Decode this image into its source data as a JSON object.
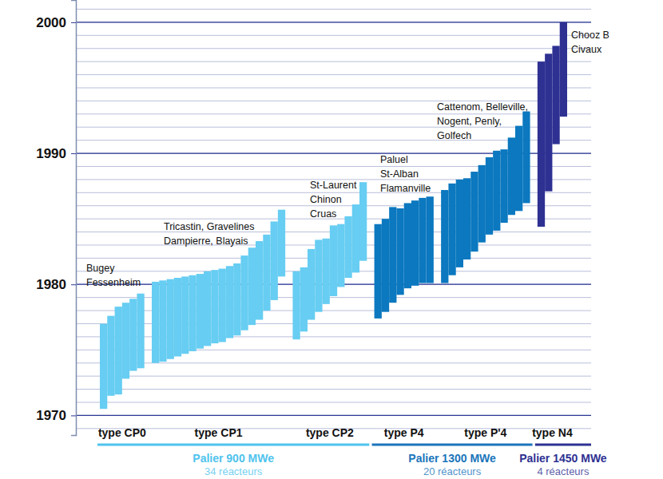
{
  "chart_data": {
    "type": "bar",
    "ylim": [
      1968.5,
      2001.7
    ],
    "yticks": [
      1970,
      1980,
      1990,
      2000
    ],
    "grid": true,
    "paliers": [
      {
        "name": "Palier 900 MWe",
        "reactors": "34 réacteurs",
        "color": "#4fc3ee",
        "series": [
          {
            "name": "type CP0",
            "sites": [
              "Bugey",
              "Fessenheim"
            ],
            "color": "#67cdf2",
            "start": [
              1970.5,
              1971.5,
              1971.6,
              1972.8,
              1973.4,
              1973.6
            ],
            "end": [
              1977.0,
              1977.6,
              1978.3,
              1978.6,
              1978.9,
              1979.3
            ]
          },
          {
            "name": "type CP1",
            "sites": [
              "Tricastin, Gravelines",
              "Dampierre, Blayais"
            ],
            "color": "#67cdf2",
            "start": [
              1974.0,
              1974.1,
              1974.3,
              1974.5,
              1974.7,
              1974.9,
              1975.1,
              1975.3,
              1975.5,
              1975.6,
              1975.9,
              1976.1,
              1976.5,
              1976.9,
              1977.3,
              1978.0,
              1978.8,
              1980.6
            ],
            "end": [
              1980.2,
              1980.3,
              1980.4,
              1980.5,
              1980.6,
              1980.7,
              1980.8,
              1981.0,
              1981.1,
              1981.2,
              1981.4,
              1981.6,
              1982.2,
              1982.8,
              1983.3,
              1983.8,
              1984.8,
              1985.7
            ]
          },
          {
            "name": "type CP2",
            "sites": [
              "St-Laurent",
              "Chinon",
              "Cruas"
            ],
            "color": "#67cdf2",
            "start": [
              1975.8,
              1976.4,
              1977.3,
              1977.9,
              1978.5,
              1979.1,
              1979.8,
              1980.5,
              1980.9,
              1981.8
            ],
            "end": [
              1981.0,
              1981.3,
              1982.7,
              1983.4,
              1983.5,
              1984.5,
              1984.6,
              1985.2,
              1986.1,
              1987.8
            ]
          }
        ]
      },
      {
        "name": "Palier 1300 MWe",
        "reactors": "20 réacteurs",
        "color": "#1a75bb",
        "series": [
          {
            "name": "type P4",
            "sites": [
              "Paluel",
              "St-Alban",
              "Flamanville"
            ],
            "color": "#0b78bf",
            "start": [
              1977.4,
              1977.9,
              1978.6,
              1979.2,
              1979.7,
              1979.9,
              1980.1,
              1980.1
            ],
            "end": [
              1984.6,
              1985.0,
              1985.9,
              1985.8,
              1986.2,
              1986.4,
              1986.6,
              1986.7
            ]
          },
          {
            "name": "type P'4",
            "sites": [
              "Cattenom, Belleville,",
              "Nogent, Penly,",
              "Golfech"
            ],
            "color": "#0b78bf",
            "start": [
              1980.1,
              1980.7,
              1981.3,
              1981.9,
              1982.5,
              1983.2,
              1983.8,
              1984.1,
              1984.7,
              1985.3,
              1985.6,
              1986.2
            ],
            "end": [
              1987.2,
              1987.7,
              1988.0,
              1988.1,
              1988.6,
              1989.1,
              1989.7,
              1990.2,
              1990.3,
              1991.2,
              1992.1,
              1993.2
            ]
          }
        ]
      },
      {
        "name": "Palier 1450 MWe",
        "reactors": "4 réacteurs",
        "color": "#2e3192",
        "series": [
          {
            "name": "type N4",
            "sites": [
              "Chooz B",
              "Civaux"
            ],
            "color": "#2e3192",
            "start": [
              1984.4,
              1987.1,
              1990.7,
              1992.8
            ],
            "end": [
              1997.0,
              1997.6,
              1998.2,
              2000.0
            ]
          }
        ]
      }
    ]
  }
}
